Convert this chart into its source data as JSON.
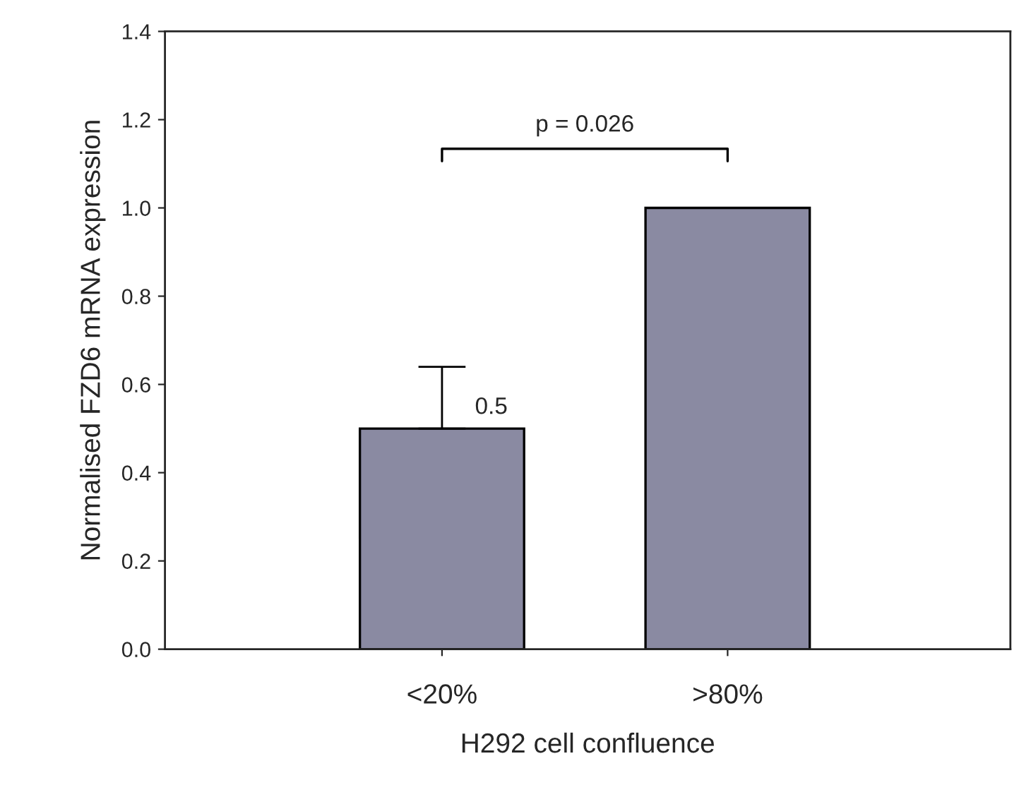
{
  "chart_data": {
    "type": "bar",
    "xlabel": "H292 cell confluence",
    "ylabel": "Normalised FZD6 mRNA expression",
    "categories": [
      "<20%",
      ">80%"
    ],
    "values": [
      0.5,
      1.0
    ],
    "errors": [
      [
        0.5,
        0.64
      ],
      null
    ],
    "value_labels": [
      "0.5",
      null
    ],
    "color": "#8a8aa2",
    "ylim": [
      0,
      1.4
    ],
    "yticks": [
      {
        "value": 0,
        "label": "0.0"
      },
      {
        "value": 0.2,
        "label": "0.2"
      },
      {
        "value": 0.4,
        "label": "0.4"
      },
      {
        "value": 0.6,
        "label": "0.6"
      },
      {
        "value": 0.8,
        "label": "0.8"
      },
      {
        "value": 1.0,
        "label": "1.0"
      },
      {
        "value": 1.2,
        "label": "1.2"
      },
      {
        "value": 1.4,
        "label": "1.4"
      }
    ],
    "annotations": [
      "p = 0.026"
    ],
    "grid": false,
    "legend": false
  }
}
